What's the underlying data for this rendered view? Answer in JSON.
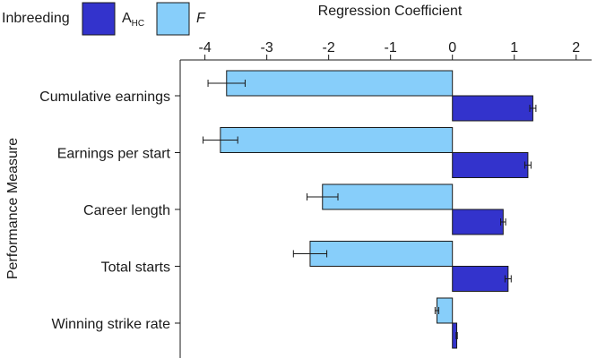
{
  "chart_data": {
    "type": "bar",
    "orientation": "horizontal",
    "title": "Regression Coefficient",
    "ylabel": "Performance Measure",
    "xlim": [
      -4.4,
      2.25
    ],
    "x_ticks": [
      "-4",
      "-3",
      "-2",
      "-1",
      "0",
      "1",
      "2"
    ],
    "x_tick_values": [
      -4,
      -3,
      -2,
      -1,
      0,
      1,
      2
    ],
    "x_axis_position": "top",
    "grid": false,
    "categories": [
      "Cumulative earnings",
      "Earnings per start",
      "Career length",
      "Total starts",
      "Winning strike rate"
    ],
    "legend": {
      "title": "Inbreeding",
      "placement": "top-left",
      "entries": [
        {
          "label_main": "A",
          "label_sub": "HC",
          "series": "A_HC"
        },
        {
          "label_main": "F",
          "label_sub": "",
          "italic": true,
          "series": "F"
        }
      ]
    },
    "series": [
      {
        "name": "F",
        "color": "#87CEFA",
        "values": [
          -3.65,
          -3.75,
          -2.1,
          -2.3,
          -0.25
        ],
        "error": [
          0.3,
          0.28,
          0.25,
          0.27,
          0.03
        ]
      },
      {
        "name": "A_HC",
        "color": "#3333CC",
        "values": [
          1.3,
          1.22,
          0.82,
          0.9,
          0.07
        ],
        "error": [
          0.05,
          0.05,
          0.04,
          0.05,
          0.01
        ]
      }
    ]
  }
}
